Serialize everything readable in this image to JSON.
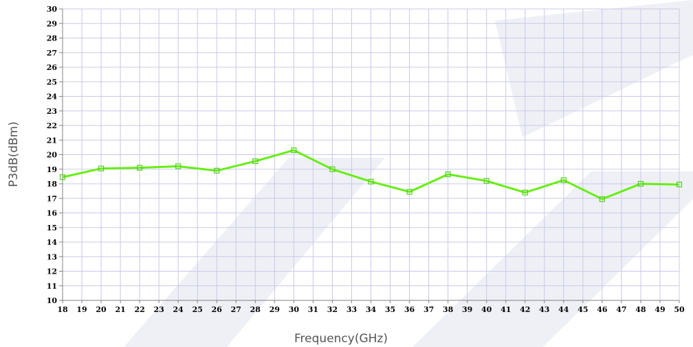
{
  "chart_data": {
    "type": "line",
    "title": "",
    "xlabel": "Frequency(GHz)",
    "ylabel": "P3dB(dBm)",
    "xlim": [
      18,
      50
    ],
    "ylim": [
      10,
      30
    ],
    "x_ticks": [
      18,
      19,
      20,
      21,
      22,
      23,
      24,
      25,
      26,
      27,
      28,
      29,
      30,
      31,
      32,
      33,
      34,
      35,
      36,
      37,
      38,
      39,
      40,
      41,
      42,
      43,
      44,
      45,
      46,
      47,
      48,
      49,
      50
    ],
    "y_ticks": [
      10,
      11,
      12,
      13,
      14,
      15,
      16,
      17,
      18,
      19,
      20,
      21,
      22,
      23,
      24,
      25,
      26,
      27,
      28,
      29,
      30
    ],
    "grid": true,
    "series": [
      {
        "color": "#66ee11",
        "marker": "square",
        "x": [
          18,
          20,
          22,
          24,
          26,
          28,
          30,
          32,
          34,
          36,
          38,
          40,
          42,
          44,
          46,
          48,
          50
        ],
        "y": [
          18.45,
          19.05,
          19.1,
          19.2,
          18.9,
          19.55,
          20.3,
          19.0,
          18.15,
          17.45,
          18.65,
          18.2,
          17.4,
          18.25,
          16.95,
          18.0,
          17.95
        ]
      }
    ],
    "colors": {
      "grid": "#c8c8e8",
      "axis": "#808080"
    }
  }
}
